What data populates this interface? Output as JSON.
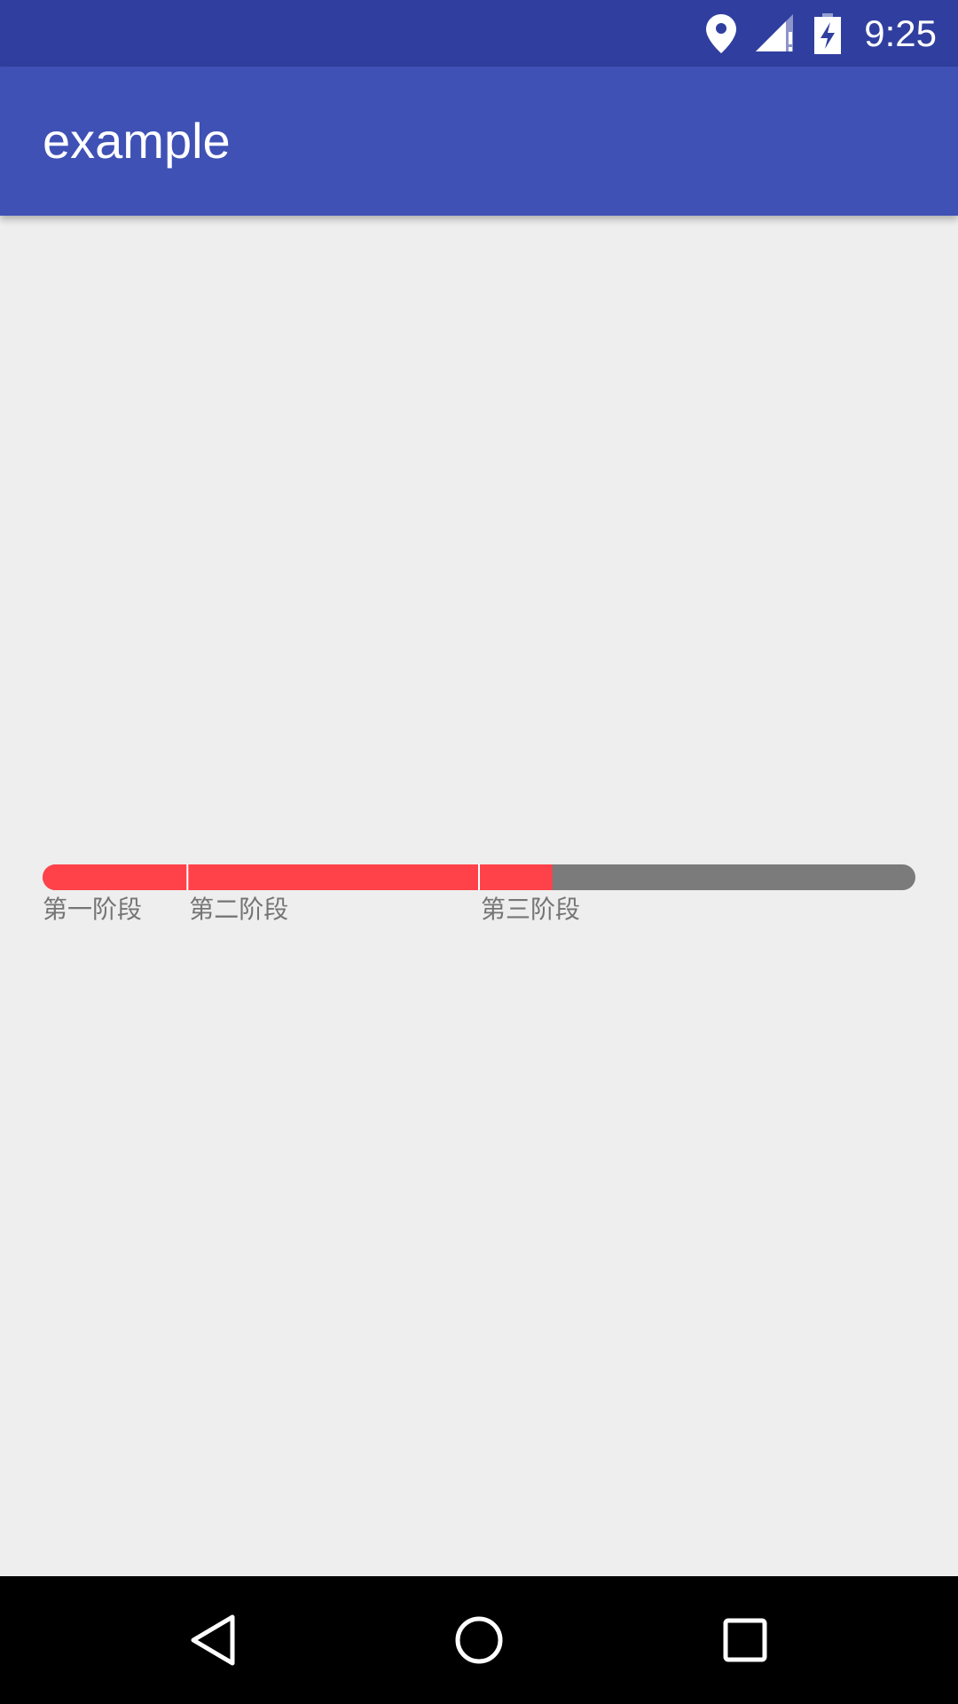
{
  "status_bar": {
    "time": "9:25",
    "icons": [
      "location-icon",
      "signal-icon",
      "battery-charging-icon"
    ]
  },
  "app_bar": {
    "title": "example"
  },
  "stage_progress": {
    "progress_percent": 58.4,
    "fill_color": "#ff4249",
    "track_color": "#7b7b7b",
    "separator_color": "#ffffff",
    "stages": [
      {
        "label": "第一阶段",
        "start_percent": 0
      },
      {
        "label": "第二阶段",
        "start_percent": 16.6
      },
      {
        "label": "第三阶段",
        "start_percent": 50
      }
    ]
  },
  "nav_bar": {
    "buttons": [
      "back-icon",
      "home-icon",
      "recents-icon"
    ]
  },
  "colors": {
    "status_bar": "#303f9f",
    "app_bar": "#3f51b5",
    "background": "#eeeeee",
    "label_text": "#757575"
  }
}
